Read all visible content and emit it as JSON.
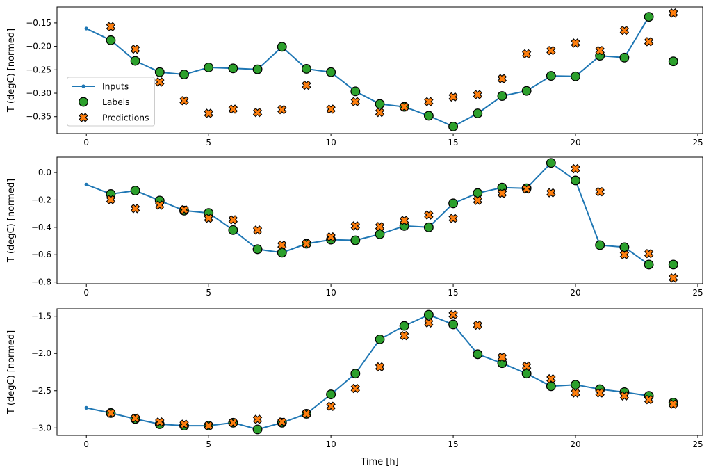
{
  "figure": {
    "xlabel": "Time [h]",
    "ylabel": "T (degC) [normed]",
    "xtick_labels": [
      "0",
      "5",
      "10",
      "15",
      "20",
      "25"
    ],
    "colors": {
      "inputs_line": "#1f77b4",
      "labels_marker": "#2ca02c",
      "predictions_marker": "#ff7f0e",
      "marker_edge": "#000000",
      "legend_border": "#cccccc"
    },
    "legend": {
      "items": [
        {
          "label": "Inputs",
          "marker": "line-dot",
          "color": "#1f77b4"
        },
        {
          "label": "Labels",
          "marker": "circle",
          "color": "#2ca02c"
        },
        {
          "label": "Predictions",
          "marker": "x",
          "color": "#ff7f0e"
        }
      ]
    }
  },
  "chart_data": [
    {
      "type": "line",
      "title": "",
      "xlabel": "",
      "ylabel": "T (degC) [normed]",
      "xlim": [
        -1.2,
        25.2
      ],
      "ylim": [
        -0.386,
        -0.116
      ],
      "xticks": [
        0,
        5,
        10,
        15,
        20,
        25
      ],
      "ytick_values": [
        -0.15,
        -0.2,
        -0.25,
        -0.3,
        -0.35
      ],
      "ytick_labels": [
        "−0.15",
        "−0.20",
        "−0.25",
        "−0.30",
        "−0.35"
      ],
      "legend_visible": true,
      "grid": false,
      "series": [
        {
          "name": "Inputs",
          "kind": "line",
          "x": [
            0,
            1,
            2,
            3,
            4,
            5,
            6,
            7,
            8,
            9,
            10,
            11,
            12,
            13,
            14,
            15,
            16,
            17,
            18,
            19,
            20,
            21,
            22,
            23
          ],
          "y": [
            -0.162,
            -0.187,
            -0.231,
            -0.255,
            -0.26,
            -0.245,
            -0.247,
            -0.249,
            -0.201,
            -0.248,
            -0.255,
            -0.296,
            -0.323,
            -0.329,
            -0.348,
            -0.371,
            -0.343,
            -0.306,
            -0.295,
            -0.263,
            -0.264,
            -0.22,
            -0.224,
            -0.137
          ]
        },
        {
          "name": "Labels",
          "kind": "scatter-circle",
          "x": [
            1,
            2,
            3,
            4,
            5,
            6,
            7,
            8,
            9,
            10,
            11,
            12,
            13,
            14,
            15,
            16,
            17,
            18,
            19,
            20,
            21,
            22,
            23,
            24
          ],
          "y": [
            -0.187,
            -0.231,
            -0.255,
            -0.26,
            -0.245,
            -0.247,
            -0.249,
            -0.201,
            -0.248,
            -0.255,
            -0.296,
            -0.323,
            -0.329,
            -0.348,
            -0.371,
            -0.343,
            -0.306,
            -0.295,
            -0.263,
            -0.264,
            -0.22,
            -0.224,
            -0.137,
            -0.232
          ]
        },
        {
          "name": "Predictions",
          "kind": "scatter-x",
          "x": [
            1,
            2,
            3,
            4,
            5,
            6,
            7,
            8,
            9,
            10,
            11,
            12,
            13,
            14,
            15,
            16,
            17,
            18,
            19,
            20,
            21,
            22,
            23,
            24
          ],
          "y": [
            -0.158,
            -0.206,
            -0.276,
            -0.316,
            -0.343,
            -0.334,
            -0.341,
            -0.335,
            -0.283,
            -0.334,
            -0.318,
            -0.341,
            -0.329,
            -0.318,
            -0.308,
            -0.303,
            -0.269,
            -0.216,
            -0.209,
            -0.193,
            -0.209,
            -0.166,
            -0.19,
            -0.129
          ]
        }
      ]
    },
    {
      "type": "line",
      "title": "",
      "xlabel": "",
      "ylabel": "T (degC) [normed]",
      "xlim": [
        -1.2,
        25.2
      ],
      "ylim": [
        -0.812,
        0.112
      ],
      "xticks": [
        0,
        5,
        10,
        15,
        20,
        25
      ],
      "ytick_values": [
        0.0,
        -0.2,
        -0.4,
        -0.6,
        -0.8
      ],
      "ytick_labels": [
        "0.0",
        "−0.2",
        "−0.4",
        "−0.6",
        "−0.8"
      ],
      "legend_visible": false,
      "grid": false,
      "series": [
        {
          "name": "Inputs",
          "kind": "line",
          "x": [
            0,
            1,
            2,
            3,
            4,
            5,
            6,
            7,
            8,
            9,
            10,
            11,
            12,
            13,
            14,
            15,
            16,
            17,
            18,
            19,
            20,
            21,
            22,
            23
          ],
          "y": [
            -0.088,
            -0.157,
            -0.132,
            -0.205,
            -0.278,
            -0.295,
            -0.42,
            -0.56,
            -0.585,
            -0.52,
            -0.49,
            -0.495,
            -0.45,
            -0.39,
            -0.4,
            -0.225,
            -0.15,
            -0.11,
            -0.115,
            0.07,
            -0.058,
            -0.53,
            -0.545,
            -0.672
          ]
        },
        {
          "name": "Labels",
          "kind": "scatter-circle",
          "x": [
            1,
            2,
            3,
            4,
            5,
            6,
            7,
            8,
            9,
            10,
            11,
            12,
            13,
            14,
            15,
            16,
            17,
            18,
            19,
            20,
            21,
            22,
            23,
            24
          ],
          "y": [
            -0.157,
            -0.132,
            -0.205,
            -0.278,
            -0.295,
            -0.42,
            -0.56,
            -0.585,
            -0.52,
            -0.49,
            -0.495,
            -0.45,
            -0.39,
            -0.4,
            -0.225,
            -0.15,
            -0.11,
            -0.115,
            0.07,
            -0.058,
            -0.53,
            -0.545,
            -0.672,
            -0.672
          ]
        },
        {
          "name": "Predictions",
          "kind": "scatter-x",
          "x": [
            1,
            2,
            3,
            4,
            5,
            6,
            7,
            8,
            9,
            10,
            11,
            12,
            13,
            14,
            15,
            16,
            17,
            18,
            19,
            20,
            21,
            22,
            23,
            24
          ],
          "y": [
            -0.198,
            -0.263,
            -0.238,
            -0.272,
            -0.334,
            -0.345,
            -0.42,
            -0.53,
            -0.52,
            -0.47,
            -0.39,
            -0.395,
            -0.35,
            -0.31,
            -0.335,
            -0.203,
            -0.152,
            -0.12,
            -0.148,
            0.028,
            -0.14,
            -0.6,
            -0.592,
            -0.77
          ]
        }
      ]
    },
    {
      "type": "line",
      "title": "",
      "xlabel": "Time [h]",
      "ylabel": "T (degC) [normed]",
      "xlim": [
        -1.2,
        25.2
      ],
      "ylim": [
        -3.1,
        -1.4
      ],
      "xticks": [
        0,
        5,
        10,
        15,
        20,
        25
      ],
      "ytick_values": [
        -1.5,
        -2.0,
        -2.5,
        -3.0
      ],
      "ytick_labels": [
        "−1.5",
        "−2.0",
        "−2.5",
        "−3.0"
      ],
      "legend_visible": false,
      "grid": false,
      "series": [
        {
          "name": "Inputs",
          "kind": "line",
          "x": [
            0,
            1,
            2,
            3,
            4,
            5,
            6,
            7,
            8,
            9,
            10,
            11,
            12,
            13,
            14,
            15,
            16,
            17,
            18,
            19,
            20,
            21,
            22,
            23
          ],
          "y": [
            -2.73,
            -2.8,
            -2.88,
            -2.95,
            -2.97,
            -2.97,
            -2.93,
            -3.02,
            -2.93,
            -2.81,
            -2.55,
            -2.27,
            -1.81,
            -1.63,
            -1.48,
            -1.61,
            -2.01,
            -2.13,
            -2.27,
            -2.44,
            -2.42,
            -2.48,
            -2.52,
            -2.57
          ]
        },
        {
          "name": "Labels",
          "kind": "scatter-circle",
          "x": [
            1,
            2,
            3,
            4,
            5,
            6,
            7,
            8,
            9,
            10,
            11,
            12,
            13,
            14,
            15,
            16,
            17,
            18,
            19,
            20,
            21,
            22,
            23,
            24
          ],
          "y": [
            -2.8,
            -2.88,
            -2.95,
            -2.97,
            -2.97,
            -2.93,
            -3.02,
            -2.93,
            -2.81,
            -2.55,
            -2.27,
            -1.81,
            -1.63,
            -1.48,
            -1.61,
            -2.01,
            -2.13,
            -2.27,
            -2.44,
            -2.42,
            -2.48,
            -2.52,
            -2.57,
            -2.66
          ]
        },
        {
          "name": "Predictions",
          "kind": "scatter-x",
          "x": [
            1,
            2,
            3,
            4,
            5,
            6,
            7,
            8,
            9,
            10,
            11,
            12,
            13,
            14,
            15,
            16,
            17,
            18,
            19,
            20,
            21,
            22,
            23,
            24
          ],
          "y": [
            -2.8,
            -2.87,
            -2.92,
            -2.95,
            -2.97,
            -2.93,
            -2.885,
            -2.92,
            -2.81,
            -2.71,
            -2.47,
            -2.18,
            -1.76,
            -1.59,
            -1.48,
            -1.62,
            -2.05,
            -2.17,
            -2.34,
            -2.53,
            -2.53,
            -2.57,
            -2.62,
            -2.68
          ]
        }
      ]
    }
  ]
}
